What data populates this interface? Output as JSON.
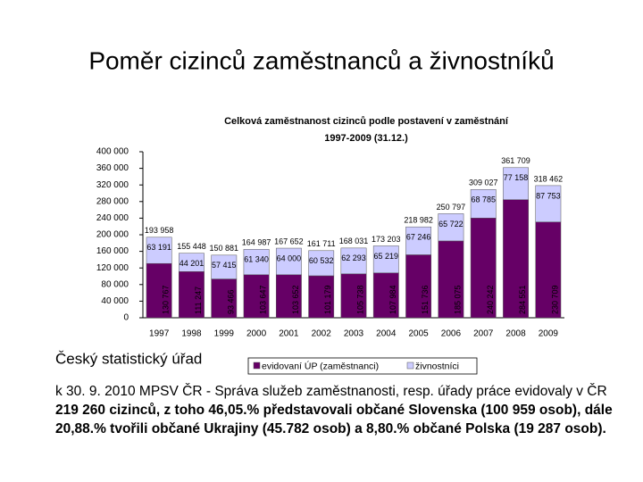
{
  "slide_title": "Poměr cizinců zaměstnanců a živnostníků",
  "source": "Český statistický úřad",
  "note": {
    "normal": "k 30. 9. 2010 MPSV ČR - Správa služeb zaměstnanosti, resp. úřady práce evidovaly v ČR ",
    "bold": "219 260 cizinců, z toho 46,05.% představovali občané Slovenska (100 959 osob), dále 20,88.% tvořili občané Ukrajiny (45.782 osob) a 8,80.% občané Polska (19 287 osob)."
  },
  "chart_data": {
    "type": "stacked_bar",
    "title": [
      "Celková zaměstnanost cizinců podle postavení v zaměstnání",
      "1997-2009 (31.12.)"
    ],
    "categories": [
      "1997",
      "1998",
      "1999",
      "2000",
      "2001",
      "2002",
      "2003",
      "2004",
      "2005",
      "2006",
      "2007",
      "2008",
      "2009"
    ],
    "series": [
      {
        "name": "evidovaní ÚP (zaměstnanci)",
        "color": "#660066",
        "values": [
          130767,
          111247,
          93466,
          103647,
          103652,
          101179,
          105738,
          107984,
          151736,
          185075,
          240242,
          284551,
          230709
        ],
        "value_labels": [
          "130 767",
          "111 247",
          "93 466",
          "103 647",
          "103 652",
          "101 179",
          "105 738",
          "107 984",
          "151 736",
          "185 075",
          "240 242",
          "284 551",
          "230 709"
        ]
      },
      {
        "name": "živnostníci",
        "color": "#ccccff",
        "values": [
          63191,
          44201,
          57415,
          61340,
          64000,
          60532,
          62293,
          65219,
          67246,
          65722,
          68785,
          77158,
          87753
        ],
        "value_labels": [
          "63 191",
          "44 201",
          "57 415",
          "61 340",
          "64 000",
          "60 532",
          "62 293",
          "65 219",
          "67 246",
          "65 722",
          "68 785",
          "77 158",
          "87 753"
        ]
      }
    ],
    "total_labels": [
      "193 958",
      "155 448",
      "150 881",
      "164 987",
      "167 652",
      "161 711",
      "168 031",
      "173 203",
      "218 982",
      "250 797",
      "309 027",
      "361 709",
      "318 462"
    ],
    "ylim": [
      0,
      400000
    ],
    "yticks": [
      0,
      {
        "value": 40000,
        "label": "40 000"
      },
      {
        "value": 80000,
        "label": "80 000"
      },
      {
        "value": 120000,
        "label": "120 000"
      },
      {
        "value": 160000,
        "label": "160 000"
      },
      {
        "value": 200000,
        "label": "200 000"
      },
      {
        "value": 240000,
        "label": "240 000"
      },
      {
        "value": 280000,
        "label": "280 000"
      },
      {
        "value": 320000,
        "label": "320 000"
      },
      {
        "value": 360000,
        "label": "360 000"
      },
      {
        "value": 400000,
        "label": "400 000"
      }
    ],
    "grid": false
  }
}
